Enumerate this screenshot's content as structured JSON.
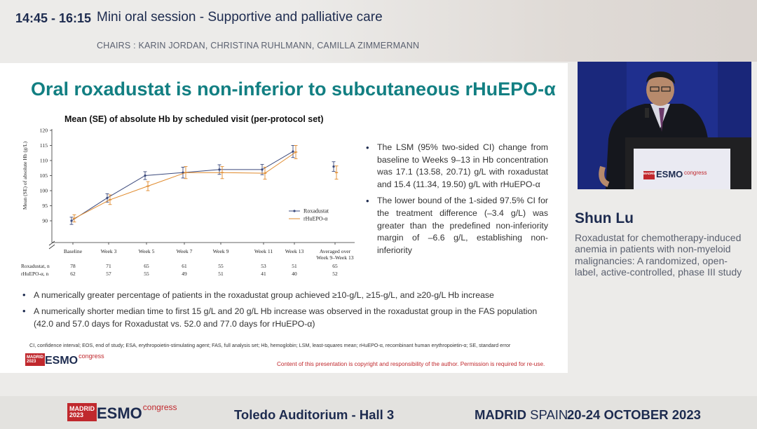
{
  "header": {
    "time": "14:45 - 16:15",
    "session_title": "Mini oral session - Supportive and palliative care",
    "chairs": "CHAIRS : KARIN JORDAN, CHRISTINA RUHLMANN, CAMILLA ZIMMERMANN"
  },
  "slide": {
    "title": "Oral roxadustat is non-inferior to subcutaneous rHuEPO-α",
    "chart_title": "Mean (SE) of absolute Hb by scheduled visit (per-protocol set)",
    "bullets_right": [
      "The LSM (95% two-sided CI) change from baseline to Weeks 9–13 in Hb concentration was 17.1 (13.58, 20.71) g/L with roxadustat and 15.4 (11.34, 19.50) g/L with rHuEPO-α",
      "The lower bound of the 1-sided 97.5% CI for the treatment difference (–3.4 g/L) was greater than the predefined non-inferiority margin of –6.6 g/L, establishing non-inferiority"
    ],
    "bullets_bottom": [
      "A numerically greater percentage of patients in the roxadustat group achieved ≥10-g/L, ≥15-g/L, and ≥20-g/L Hb increase",
      "A numerically shorter median time to first 15 g/L and 20 g/L Hb increase was observed in the roxadustat group in the FAS population (42.0 and 57.0 days for Roxadustat vs. 52.0 and 77.0 days for rHuEPO-α)"
    ],
    "footnote": "CI, confidence interval; EOS, end of study; ESA, erythropoietin-stimulating agent; FAS, full analysis set; Hb, hemoglobin; LSM, least-squares mean; rHuEPO-α, recombinant human erythropoietin-α; SE, standard error",
    "copyright": "Content of this presentation is copyright and responsibility of the author. Permission is required for re-use.",
    "logo": {
      "badge_line1": "MADRID",
      "badge_line2": "2023",
      "word": "ESMO",
      "congress": "congress"
    }
  },
  "chart_data": {
    "type": "line",
    "title": "Mean (SE) of absolute Hb by scheduled visit (per-protocol set)",
    "ylabel": "Mean (SE) of absolute Hb (g/L)",
    "xlabel": "",
    "ylim": [
      90,
      120
    ],
    "yticks": [
      90,
      95,
      100,
      105,
      110,
      115,
      120
    ],
    "y_axis_break": true,
    "categories": [
      "Baseline",
      "Week 3",
      "Week 5",
      "Week 7",
      "Week 9",
      "Week 11",
      "Week 13",
      "Averaged over Week 9–Week 13"
    ],
    "category_label_lines": [
      [
        "Baseline"
      ],
      [
        "Week 3"
      ],
      [
        "Week 5"
      ],
      [
        "Week 7"
      ],
      [
        "Week 9"
      ],
      [
        "Week 11"
      ],
      [
        "Week 13"
      ],
      [
        "Averaged over",
        "Week 9–Week 13"
      ]
    ],
    "legend_position": "bottom-right",
    "series": [
      {
        "name": "Roxadustat",
        "color": "#3c4a7c",
        "values": [
          90.0,
          97.6,
          105.0,
          106.0,
          107.0,
          107.0,
          113.0,
          108.0
        ],
        "se": [
          1.2,
          1.4,
          1.3,
          1.8,
          1.6,
          1.7,
          2.0,
          1.6
        ]
      },
      {
        "name": "rHuEPO-α",
        "color": "#e08a2c",
        "values": [
          90.8,
          97.0,
          101.5,
          106.0,
          106.0,
          105.8,
          112.8,
          106.0
        ],
        "se": [
          1.2,
          1.6,
          1.5,
          2.0,
          2.0,
          2.0,
          2.2,
          2.2
        ]
      }
    ],
    "n_table": {
      "rows": [
        {
          "label": "Roxadustat, n",
          "values": [
            78,
            71,
            65,
            61,
            55,
            53,
            51,
            65
          ]
        },
        {
          "label": "rHuEPO-α, n",
          "values": [
            62,
            57,
            55,
            49,
            51,
            41,
            40,
            52
          ]
        }
      ]
    }
  },
  "speaker": {
    "name": "Shun Lu",
    "talk_title": "Roxadustat for chemotherapy-induced anemia in patients with non-myeloid malignancies: A randomized, open-label, active-controlled, phase III study",
    "podium_logo": {
      "badge": "MADRID",
      "word": "ESMO",
      "congress": "congress"
    }
  },
  "footer": {
    "logo": {
      "badge_line1": "MADRID",
      "badge_line2": "2023",
      "word": "ESMO",
      "congress": "congress"
    },
    "venue": "Toledo Auditorium - Hall 3",
    "city_bold": "MADRID",
    "city_rest": " SPAIN",
    "dates": "20-24 OCTOBER 2023"
  },
  "colors": {
    "title_teal": "#127f82",
    "navy": "#1d2b4f",
    "esmo_red": "#c0282d",
    "roxadustat": "#3c4a7c",
    "rhuepo": "#e08a2c"
  }
}
